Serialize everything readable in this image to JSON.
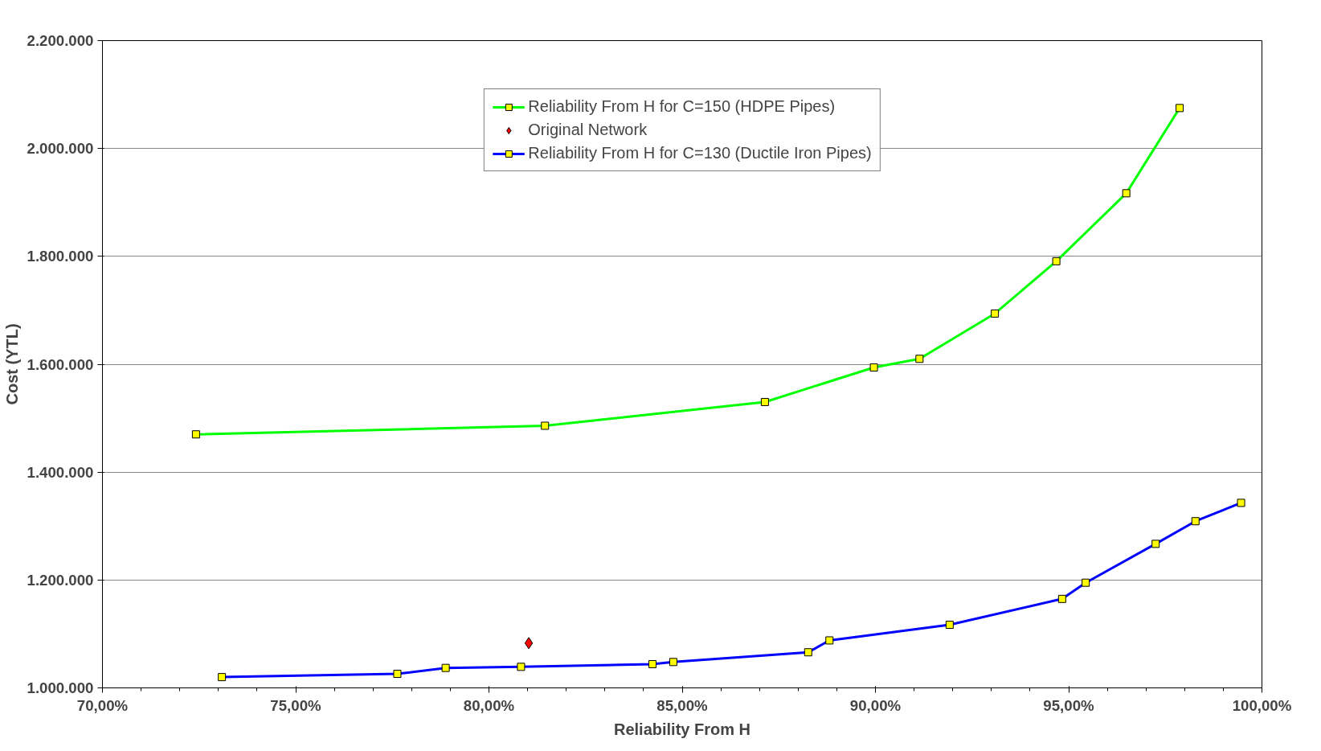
{
  "chart_data": {
    "type": "line",
    "xlabel": "Reliability From H",
    "ylabel": "Cost (YTL)",
    "xlim": [
      70,
      100
    ],
    "xticks": [
      {
        "value": 70,
        "label": "70,00%"
      },
      {
        "value": 75,
        "label": "75,00%"
      },
      {
        "value": 80,
        "label": "80,00%"
      },
      {
        "value": 85,
        "label": "85,00%"
      },
      {
        "value": 90,
        "label": "90,00%"
      },
      {
        "value": 95,
        "label": "95,00%"
      },
      {
        "value": 100,
        "label": "100,00%"
      }
    ],
    "ylim": [
      1000000,
      2200000
    ],
    "yticks": [
      {
        "value": 1000000,
        "label": "1.000.000"
      },
      {
        "value": 1200000,
        "label": "1.200.000"
      },
      {
        "value": 1400000,
        "label": "1.400.000"
      },
      {
        "value": 1600000,
        "label": "1.600.000"
      },
      {
        "value": 1800000,
        "label": "1.800.000"
      },
      {
        "value": 2000000,
        "label": "2.000.000"
      },
      {
        "value": 2200000,
        "label": "2.200.000"
      }
    ],
    "grid": "y",
    "legend": "top",
    "marker": "square",
    "series": [
      {
        "name": "Reliability From H for C=150 (HDPE Pipes)",
        "color": "#00ff00",
        "x": [
          72.42,
          81.45,
          87.14,
          89.96,
          91.14,
          93.09,
          94.68,
          96.49,
          97.87
        ],
        "values": [
          1470000,
          1486000,
          1530000,
          1594000,
          1610000,
          1694000,
          1791000,
          1917000,
          2075000
        ]
      },
      {
        "name": "Original Network",
        "type": "scatter",
        "marker": "diamond",
        "color": "#ff0000",
        "x": [
          81.03
        ],
        "values": [
          1083000
        ]
      },
      {
        "name": "Reliability From H for C=130 (Ductile Iron Pipes)",
        "color": "#0000ff",
        "x": [
          73.09,
          77.63,
          78.88,
          80.83,
          84.23,
          84.77,
          88.26,
          88.81,
          91.92,
          94.83,
          95.44,
          97.25,
          98.28,
          99.46
        ],
        "values": [
          1020000,
          1026000,
          1037000,
          1039000,
          1044000,
          1048000,
          1066000,
          1088000,
          1117000,
          1165000,
          1195000,
          1267000,
          1309000,
          1343000
        ]
      }
    ]
  }
}
